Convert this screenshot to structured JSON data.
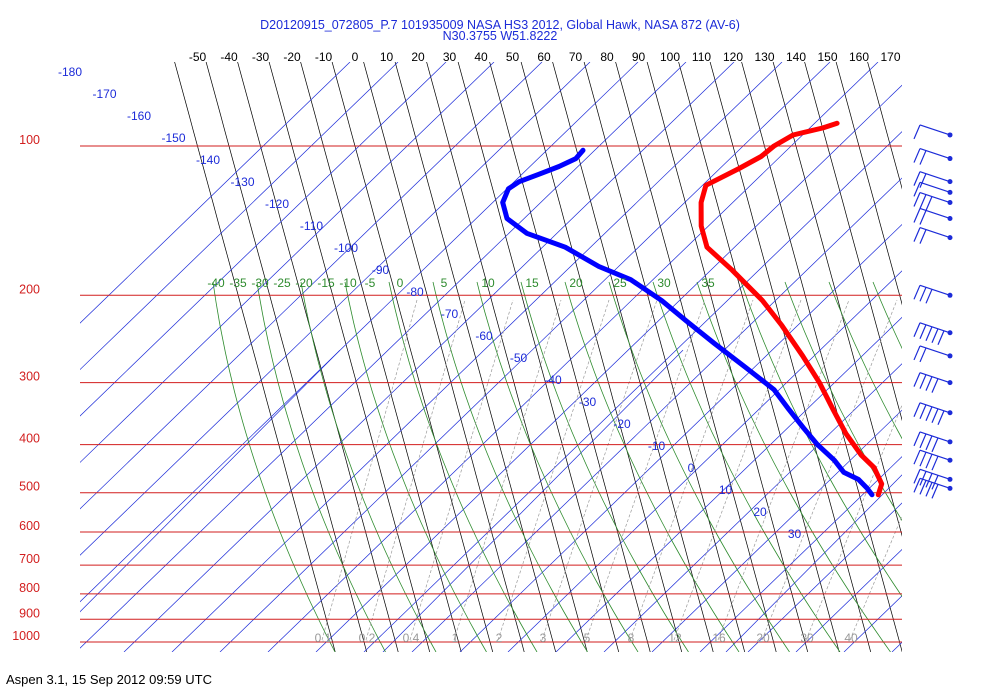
{
  "title_line1": "D20120915_072805_P.7 101935009 NASA HS3 2012, Global Hawk, NASA 872 (AV-6)",
  "title_line2": "N30.3755 W51.8222",
  "footer": "Aspen 3.1, 15 Sep 2012  09:59 UTC",
  "colors": {
    "isobar": "#d21e1e",
    "isotherm": "#000000",
    "dry_adiabat": "#1c2bd8",
    "moist_adiabat": "#2e8b2e",
    "mixing_ratio": "#9a9a9a",
    "temperature": "#ff0000",
    "dewpoint": "#0000ff",
    "barb": "#1c2bd8",
    "pressure_label": "#d21e1e",
    "temp_label": "#000000"
  },
  "chart_data": {
    "type": "skew-t log-p",
    "top_temp_ticks": [
      -50,
      -40,
      -30,
      -20,
      -10,
      0,
      10,
      20,
      30,
      40,
      50,
      60,
      70,
      80,
      90,
      100,
      110,
      120,
      130,
      140,
      150,
      160,
      170
    ],
    "pressure_ticks": [
      100,
      200,
      300,
      400,
      500,
      600,
      700,
      800,
      900,
      1000
    ],
    "isotherm_values": [
      -50,
      -40,
      -30,
      -20,
      -10,
      0,
      10,
      20,
      30,
      40,
      50,
      60,
      70,
      80,
      90,
      100,
      110,
      120,
      130,
      140,
      150,
      160,
      170
    ],
    "dry_adiabat_labels": [
      -180,
      -170,
      -160,
      -150,
      -140,
      -130,
      -120,
      -110,
      -100,
      -90,
      -80,
      -70,
      -60,
      -50,
      -40,
      -30,
      -20,
      -10,
      0,
      10,
      20,
      30
    ],
    "moist_adiabat_labels": [
      -40,
      -35,
      -30,
      -25,
      -20,
      -15,
      -10,
      -5,
      0,
      5,
      10,
      15,
      20,
      25,
      30,
      35
    ],
    "mixing_ratio_labels": [
      "0.1",
      "0.2",
      "0.4",
      "1",
      "2",
      "3",
      "5",
      "8",
      "12",
      "16",
      "20",
      "30",
      "40"
    ],
    "temperature_profile": [
      {
        "p": 505,
        "t": 136
      },
      {
        "p": 480,
        "t": 138
      },
      {
        "p": 445,
        "t": 137
      },
      {
        "p": 420,
        "t": 134
      },
      {
        "p": 380,
        "t": 131
      },
      {
        "p": 340,
        "t": 129
      },
      {
        "p": 300,
        "t": 127
      },
      {
        "p": 265,
        "t": 124
      },
      {
        "p": 230,
        "t": 120
      },
      {
        "p": 205,
        "t": 116
      },
      {
        "p": 178,
        "t": 109
      },
      {
        "p": 160,
        "t": 103
      },
      {
        "p": 145,
        "t": 103
      },
      {
        "p": 130,
        "t": 105
      },
      {
        "p": 120,
        "t": 108
      },
      {
        "p": 111,
        "t": 120
      },
      {
        "p": 105,
        "t": 128
      },
      {
        "p": 100,
        "t": 133
      },
      {
        "p": 95,
        "t": 140
      },
      {
        "p": 92,
        "t": 150
      },
      {
        "p": 90,
        "t": 155
      }
    ],
    "dewpoint_profile": [
      {
        "p": 505,
        "t": 134
      },
      {
        "p": 490,
        "t": 133
      },
      {
        "p": 470,
        "t": 131
      },
      {
        "p": 455,
        "t": 127
      },
      {
        "p": 430,
        "t": 125
      },
      {
        "p": 400,
        "t": 121
      },
      {
        "p": 370,
        "t": 118
      },
      {
        "p": 340,
        "t": 115
      },
      {
        "p": 310,
        "t": 112
      },
      {
        "p": 280,
        "t": 105
      },
      {
        "p": 250,
        "t": 97
      },
      {
        "p": 225,
        "t": 90
      },
      {
        "p": 205,
        "t": 84
      },
      {
        "p": 186,
        "t": 76
      },
      {
        "p": 175,
        "t": 67
      },
      {
        "p": 160,
        "t": 58
      },
      {
        "p": 150,
        "t": 47
      },
      {
        "p": 140,
        "t": 42
      },
      {
        "p": 130,
        "t": 42
      },
      {
        "p": 122,
        "t": 45
      },
      {
        "p": 118,
        "t": 49
      },
      {
        "p": 114,
        "t": 56
      },
      {
        "p": 110,
        "t": 63
      },
      {
        "p": 106,
        "t": 69
      },
      {
        "p": 102,
        "t": 72
      }
    ],
    "wind_barbs": [
      {
        "p": 95,
        "speed": 10
      },
      {
        "p": 106,
        "speed": 15
      },
      {
        "p": 118,
        "speed": 20
      },
      {
        "p": 124,
        "speed": 10
      },
      {
        "p": 130,
        "speed": 25
      },
      {
        "p": 140,
        "speed": 20
      },
      {
        "p": 153,
        "speed": 15
      },
      {
        "p": 200,
        "speed": 25
      },
      {
        "p": 238,
        "speed": 50
      },
      {
        "p": 265,
        "speed": 15
      },
      {
        "p": 300,
        "speed": 35
      },
      {
        "p": 345,
        "speed": 45
      },
      {
        "p": 395,
        "speed": 40
      },
      {
        "p": 430,
        "speed": 35
      },
      {
        "p": 470,
        "speed": 35
      },
      {
        "p": 490,
        "speed": 40
      }
    ]
  }
}
